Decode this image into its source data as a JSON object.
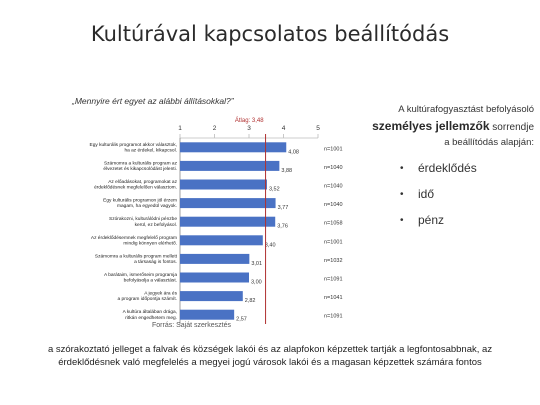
{
  "page": {
    "title": "Kultúrával kapcsolatos beállítódás",
    "question": "„Mennyire ért egyet az alábbi állításokkal?”",
    "source": "Forrás: Saját szerkesztés",
    "bottom_text": "a szórakoztató jelleget a falvak és községek lakói és az alapfokon képzettek tartják a legfontosabbnak, az érdeklődésnek való megfelelés a megyei jogú városok lakói és a magasan képzettek számára fontos"
  },
  "right_box": {
    "line1": "A kultúrafogyasztást befolyásoló",
    "line2_bold": "személyes jellemzők",
    "line2_rest": " sorrendje",
    "line3": "a beállítódás alapján:",
    "bullet_marker": "•",
    "items": [
      "érdeklődés",
      "idő",
      "pénz"
    ]
  },
  "colors": {
    "bar": "#4a72c4",
    "avg_line": "#b03030",
    "grid": "#bbbbbb"
  },
  "chart_data": {
    "type": "bar",
    "orientation": "horizontal",
    "ylim": [
      1,
      5
    ],
    "x_ticks": [
      "1",
      "2",
      "3",
      "4",
      "5"
    ],
    "reference_label": "Átlag: 3,48",
    "reference_value": 3.48,
    "categories": [
      "Egy kulturális programot akkor választok, ha az érdekel, kikapcsol.",
      "Számomra a kulturális program az élvezetet és kikapcsolódást jelenti.",
      "Az előadásokat, programokat az érdeklődésnek megfelelően választom.",
      "Egy kulturális programon jól érzem magam, ha egyedül vagyok.",
      "Szórakozni, kulturálódni pénzbe kerül, ez befolyásol.",
      "Az érdeklődésemnek megfelelő program mindig könnyen elérhető.",
      "Számomra a kulturális program mellett a társaság is fontos.",
      "A barátaim, ismerőseim programja befolyásolja a választást.",
      "A jegyek ára és a program időpontja számít.",
      "A kultúra általában drága, ritkán engedhetem meg."
    ],
    "values": [
      4.08,
      3.88,
      3.52,
      3.77,
      3.76,
      3.4,
      3.01,
      3.0,
      2.82,
      2.57
    ],
    "value_labels": [
      "4,08",
      "3,88",
      "3,52",
      "3,77",
      "3,76",
      "3,40",
      "3,01",
      "3,00",
      "2,82",
      "2,57"
    ],
    "n_labels": [
      "n=1001",
      "n=1040",
      "n=1040",
      "n=1040",
      "n=1058",
      "n=1001",
      "n=1032",
      "n=1091",
      "n=1041",
      "n=1091"
    ]
  }
}
